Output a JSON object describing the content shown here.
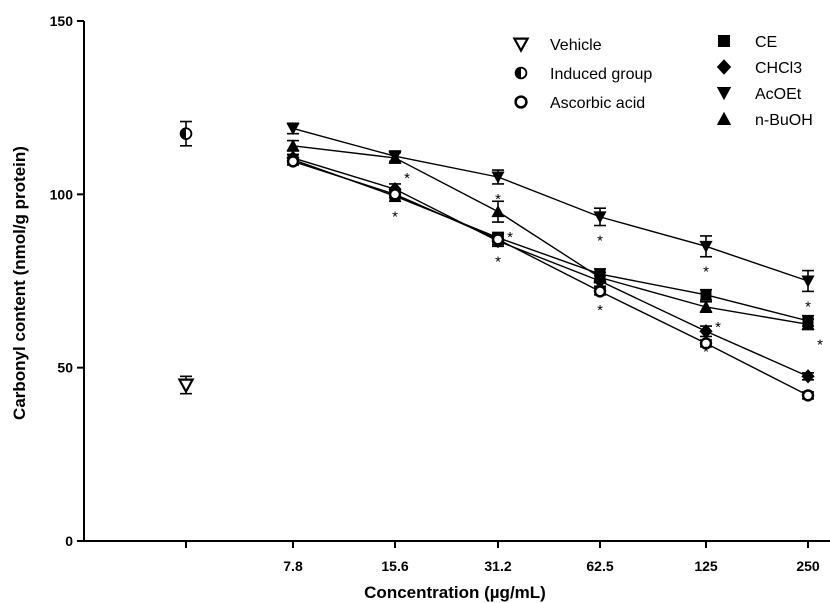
{
  "chart_data": {
    "type": "line",
    "xlabel": "Concentration (µg/mL)",
    "ylabel": "Carbonyl content (nmol/g protein)",
    "ylim": [
      0,
      150
    ],
    "yticks": [
      0,
      50,
      100,
      150
    ],
    "categories": [
      "7.8",
      "15.6",
      "31.2",
      "62.5",
      "125",
      "250"
    ],
    "series": [
      {
        "name": "CE",
        "marker": "square",
        "values": [
          110,
          99.5,
          87.5,
          77,
          71,
          63.5
        ],
        "err": [
          1.5,
          1.5,
          1.5,
          1.5,
          1.5,
          1.5
        ],
        "significant": [
          false,
          true,
          false,
          false,
          false,
          false
        ]
      },
      {
        "name": "CHCl3",
        "marker": "diamond",
        "values": [
          110.5,
          101.5,
          86.5,
          75,
          60.5,
          47.5
        ],
        "err": [
          1,
          1.5,
          1.5,
          1.5,
          1.5,
          1
        ],
        "significant": [
          false,
          false,
          true,
          false,
          true,
          false
        ]
      },
      {
        "name": "AcOEt",
        "marker": "triangle-down",
        "values": [
          119,
          111,
          105,
          93.5,
          85,
          75
        ],
        "err": [
          1.5,
          1.5,
          2,
          2.5,
          3,
          3
        ],
        "significant": [
          false,
          false,
          true,
          true,
          true,
          true
        ]
      },
      {
        "name": "n-BuOH",
        "marker": "triangle-up",
        "values": [
          114,
          110.5,
          95,
          76,
          67.5,
          62.5
        ],
        "err": [
          1.5,
          1.5,
          3,
          1.5,
          1.5,
          1.5
        ],
        "significant": [
          false,
          true,
          true,
          false,
          true,
          true
        ]
      },
      {
        "name": "Ascorbic acid",
        "marker": "circle-open",
        "values": [
          109.5,
          100,
          87,
          72,
          57,
          42
        ],
        "err": [
          1,
          1,
          1.5,
          1,
          1,
          1
        ],
        "significant": [
          false,
          false,
          false,
          true,
          false,
          false
        ]
      }
    ],
    "controls": [
      {
        "name": "Vehicle",
        "marker": "triangle-down-open",
        "value": 45,
        "err": 2.5
      },
      {
        "name": "Induced group",
        "marker": "circle-half",
        "value": 117.5,
        "err": 3.5
      }
    ],
    "significance_mark": "*",
    "legend": {
      "left": [
        "Vehicle",
        "Induced group",
        "Ascorbic acid"
      ],
      "right": [
        "CE",
        "CHCl3",
        "AcOEt",
        "n-BuOH"
      ],
      "placement": "top-right"
    }
  }
}
